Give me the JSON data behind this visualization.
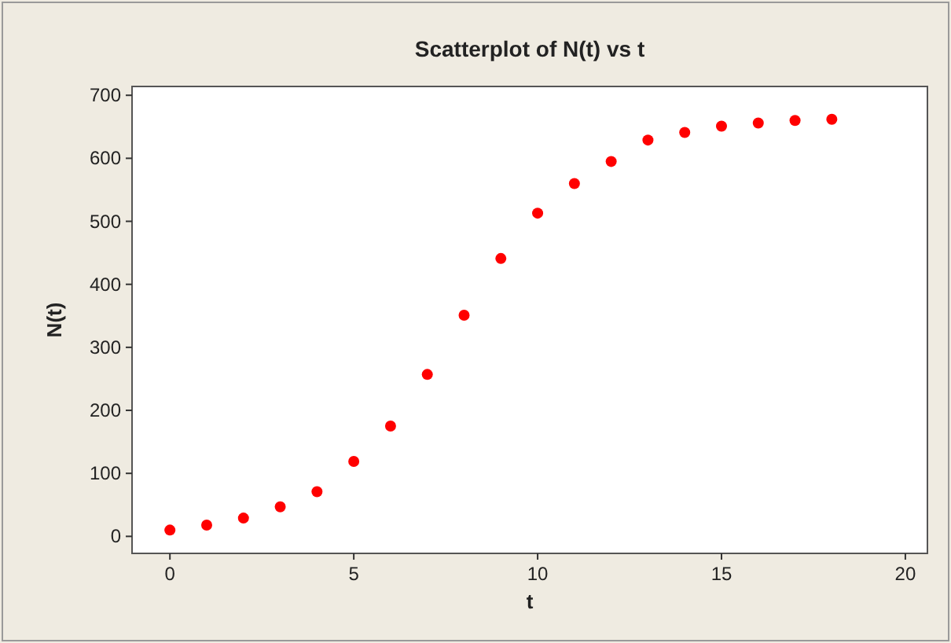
{
  "chart_data": {
    "type": "scatter",
    "title": "Scatterplot of N(t) vs t",
    "xlabel": "t",
    "ylabel": "N(t)",
    "x": [
      0,
      1,
      2,
      3,
      4,
      5,
      6,
      7,
      8,
      9,
      10,
      11,
      12,
      13,
      14,
      15,
      16,
      17,
      18
    ],
    "series": [
      {
        "color": "#ff0000",
        "values": [
          10,
          18,
          29,
          47,
          71,
          119,
          175,
          257,
          351,
          441,
          513,
          560,
          595,
          629,
          641,
          651,
          656,
          660,
          662
        ]
      }
    ],
    "xlim": [
      -1.03,
      20.6
    ],
    "ylim": [
      -27,
      714
    ],
    "xticks": [
      0,
      5,
      10,
      15,
      20
    ],
    "yticks": [
      0,
      100,
      200,
      300,
      400,
      500,
      600,
      700
    ],
    "grid": false,
    "marker": "circle"
  }
}
